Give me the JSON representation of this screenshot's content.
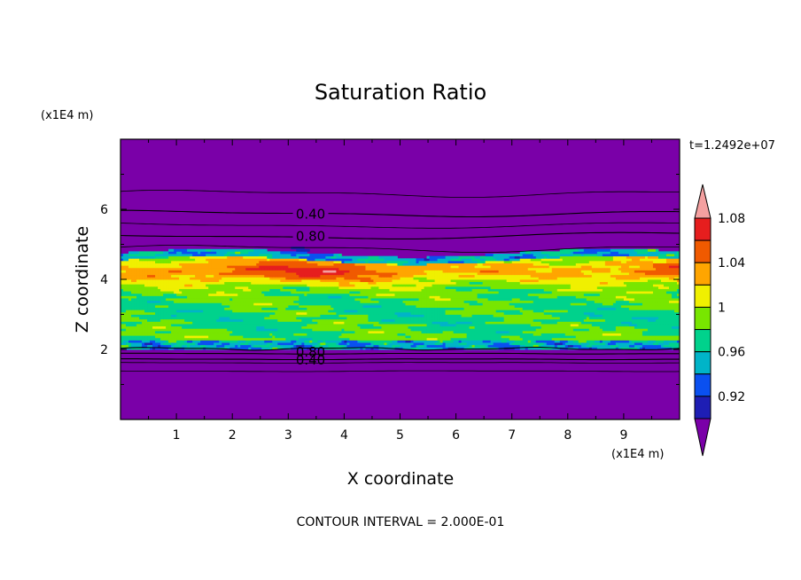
{
  "chart_data": {
    "type": "heatmap",
    "title": "Saturation Ratio",
    "xlabel": "X coordinate",
    "ylabel": "Z coordinate",
    "x_unit": "(x1E4 m)",
    "y_unit": "(x1E4 m)",
    "time_label": "t=1.2492e+07",
    "footer": "CONTOUR INTERVAL = 2.000E-01",
    "xlim": [
      0,
      10
    ],
    "ylim": [
      0,
      8
    ],
    "x_ticks": [
      "1",
      "2",
      "3",
      "4",
      "5",
      "6",
      "7",
      "8",
      "9"
    ],
    "y_ticks": [
      "2",
      "4",
      "6"
    ],
    "colorbar": {
      "levels": [
        0.92,
        0.94,
        0.96,
        0.98,
        1.0,
        1.02,
        1.04,
        1.06,
        1.08,
        1.1
      ],
      "colors": [
        "#7a00a8",
        "#1e1eb4",
        "#0a50f0",
        "#00b4c8",
        "#00d28c",
        "#78e600",
        "#f0f000",
        "#ffa500",
        "#f05a00",
        "#e61e1e",
        "#f4a0a0"
      ],
      "labels": [
        "0.92",
        "0.96",
        "1",
        "1.04",
        "1.08"
      ],
      "extend": "both"
    },
    "contour_labels": [
      "0.40",
      "0.80",
      "0.80",
      "0.40"
    ],
    "contour_levels_upper": [
      0.4,
      0.8
    ],
    "contour_levels_lower": [
      0.8,
      0.4
    ],
    "background_color": "#7a00a8"
  }
}
